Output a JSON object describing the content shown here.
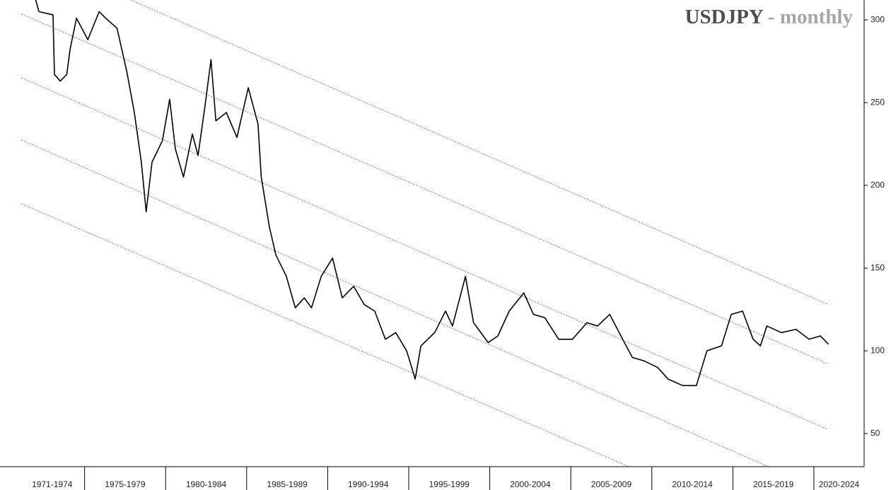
{
  "chart_data": {
    "type": "line",
    "title_parts": [
      {
        "text": "USDJPY",
        "color": "#4d4d4d"
      },
      {
        "text": "- monthly",
        "color": "#a6a6a6"
      }
    ],
    "color": "#000000",
    "x": [
      1971.9,
      1972.18,
      1973.05,
      1973.14,
      1973.5,
      1973.9,
      1974.1,
      1974.5,
      1975.2,
      1975.9,
      1976.3,
      1977.0,
      1977.6,
      1978.07,
      1978.5,
      1978.8,
      1979.16,
      1979.8,
      1980.25,
      1980.6,
      1981.1,
      1981.65,
      1982.0,
      1982.43,
      1982.8,
      1983.1,
      1983.75,
      1984.4,
      1985.1,
      1985.7,
      1985.9,
      1986.4,
      1986.8,
      1987.45,
      1988.0,
      1988.55,
      1989.0,
      1989.6,
      1990.3,
      1990.9,
      1991.6,
      1992.25,
      1992.9,
      1993.56,
      1994.2,
      1994.87,
      1995.4,
      1995.75,
      1996.6,
      1997.27,
      1997.7,
      1998.5,
      1999.0,
      1999.9,
      2000.5,
      2001.2,
      2002.1,
      2002.7,
      2003.4,
      2004.25,
      2005.1,
      2006.0,
      2006.65,
      2007.4,
      2008.2,
      2008.8,
      2009.5,
      2010.35,
      2011.0,
      2011.9,
      2012.75,
      2013.4,
      2014.3,
      2014.9,
      2015.6,
      2016.25,
      2016.7,
      2017.1,
      2018.0,
      2018.9,
      2019.7,
      2020.4,
      2020.9
    ],
    "values": [
      315,
      305,
      303,
      267,
      263,
      267,
      282,
      301,
      288,
      305,
      301,
      295,
      269,
      244,
      214,
      184,
      214,
      227,
      252,
      222,
      205,
      231,
      218,
      248,
      276,
      239,
      244,
      229,
      259,
      237,
      205,
      175,
      158,
      145,
      126,
      132,
      126,
      145,
      156,
      132,
      139,
      128,
      124,
      107,
      111,
      100,
      83,
      103,
      111,
      124,
      115,
      145,
      117,
      105,
      109,
      124,
      135,
      122,
      120,
      107,
      107,
      117,
      115,
      122,
      107,
      96,
      94,
      90,
      83,
      79,
      79,
      100,
      103,
      122,
      124,
      107,
      103,
      115,
      111,
      113,
      107,
      109,
      104
    ],
    "xlim": [
      1969.78,
      2023.1
    ],
    "ylim": [
      30,
      312
    ],
    "yticks": [
      50,
      100,
      150,
      200,
      250,
      300
    ],
    "xticks": [
      1975,
      1980,
      1985,
      1990,
      1995,
      2000,
      2005,
      2010,
      2015,
      2020
    ],
    "periods": [
      {
        "label": "1971-1974",
        "start": 1971,
        "end": 1975
      },
      {
        "label": "1975-1979",
        "start": 1975,
        "end": 1980
      },
      {
        "label": "1980-1984",
        "start": 1980,
        "end": 1985
      },
      {
        "label": "1985-1989",
        "start": 1985,
        "end": 1990
      },
      {
        "label": "1990-1994",
        "start": 1990,
        "end": 1995
      },
      {
        "label": "1995-1999",
        "start": 1995,
        "end": 2000
      },
      {
        "label": "2000-2004",
        "start": 2000,
        "end": 2005
      },
      {
        "label": "2005-2009",
        "start": 2005,
        "end": 2010
      },
      {
        "label": "2010-2014",
        "start": 2010,
        "end": 2015
      },
      {
        "label": "2015-2019",
        "start": 2015,
        "end": 2020
      },
      {
        "label": "2020-2024",
        "start": 2020,
        "end": 2025
      }
    ],
    "channel_color": "#d9534f",
    "channel_lines": [
      {
        "x": [
          1977.85,
          2020.83
        ],
        "values": [
          312,
          128.2
        ]
      },
      {
        "x": [
          1971.1,
          2020.83
        ],
        "values": [
          303.5,
          92.3
        ]
      },
      {
        "x": [
          1971.1,
          2020.83
        ],
        "values": [
          265,
          52.6
        ]
      },
      {
        "x": [
          1971.1,
          2017.2
        ],
        "values": [
          227.4,
          30
        ]
      },
      {
        "x": [
          1971.1,
          2008.57
        ],
        "values": [
          188.9,
          30
        ]
      }
    ]
  }
}
